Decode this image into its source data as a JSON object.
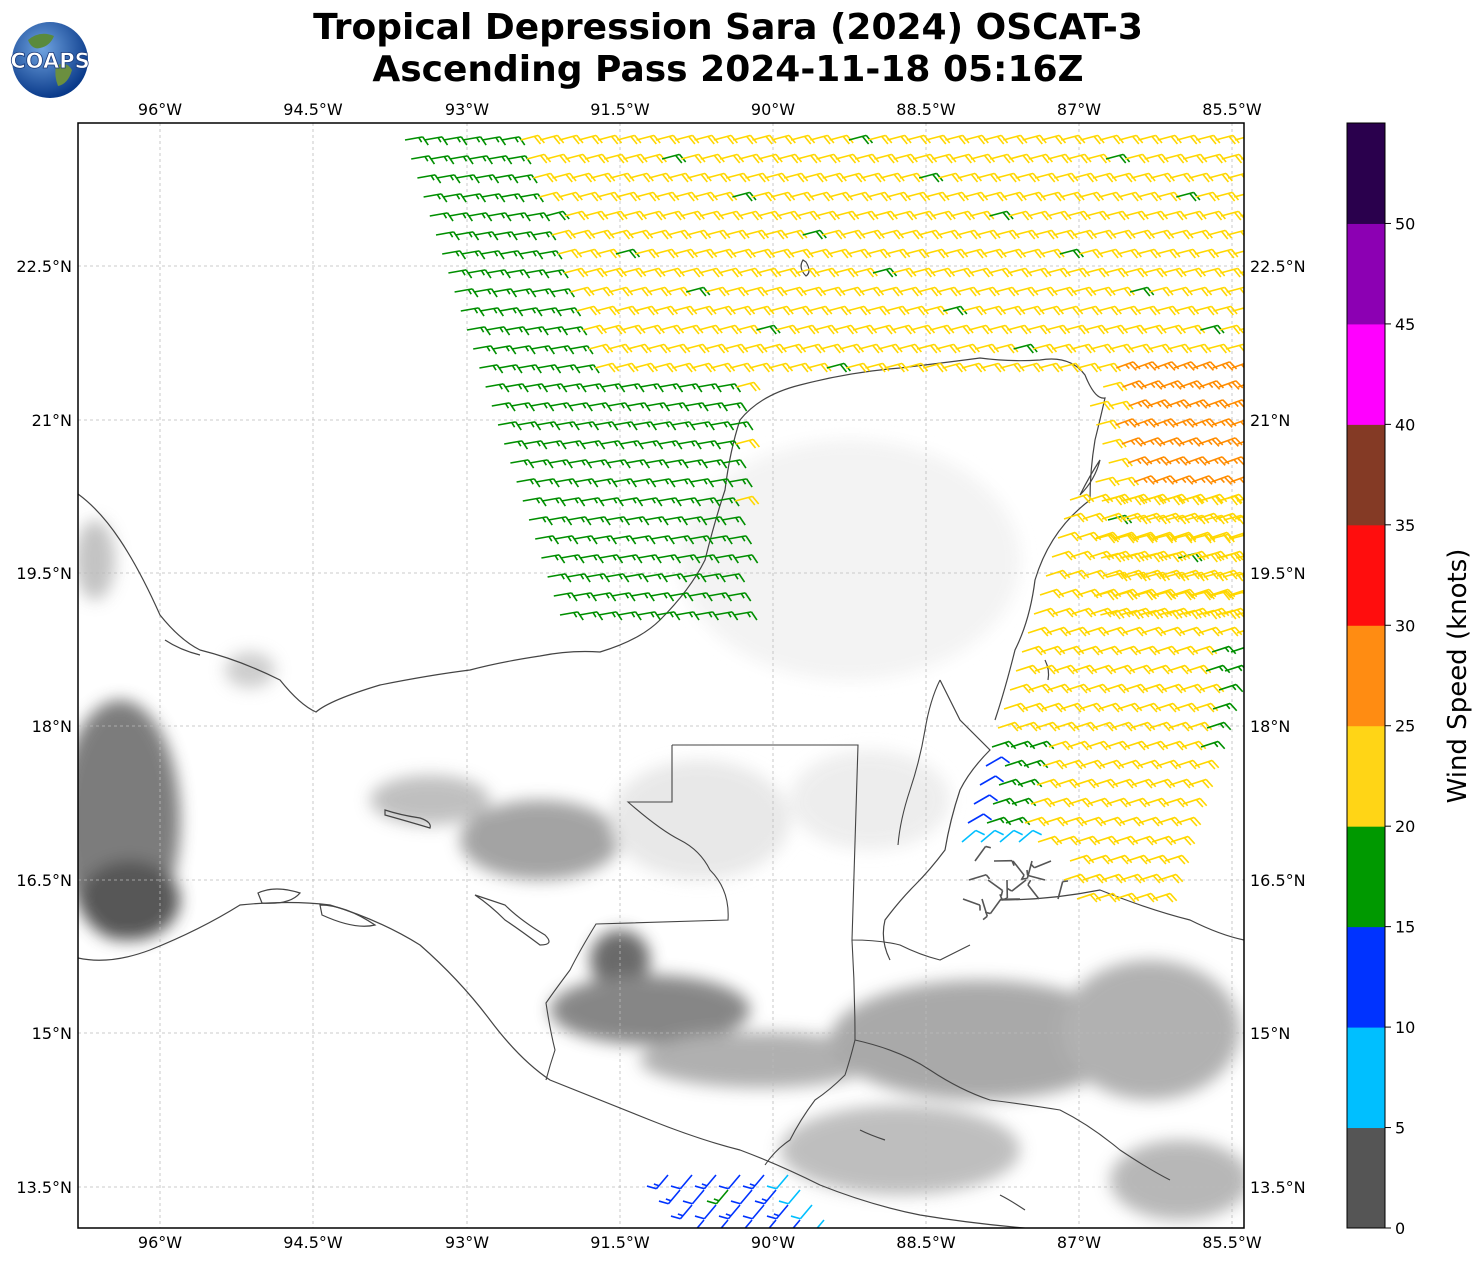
{
  "header": {
    "title_line1": "Tropical Depression Sara (2024) OSCAT-3",
    "title_line2": "Ascending Pass 2024-11-18 05:16Z",
    "logo_text": "COAPS"
  },
  "map": {
    "lon_ticks": [
      "96°W",
      "94.5°W",
      "93°W",
      "91.5°W",
      "90°W",
      "88.5°W",
      "87°W",
      "85.5°W"
    ],
    "lat_ticks": [
      "22.5°N",
      "21°N",
      "19.5°N",
      "18°N",
      "16.5°N",
      "15°N",
      "13.5°N"
    ],
    "grid": true,
    "basemap": "grayscale topography with coastlines and country borders",
    "wind_barbs_colors": {
      "0-5": "#555555",
      "5-10": "#00bfff",
      "10-15": "#0033ff",
      "15-20": "#008f00",
      "20-25": "#ffd700",
      "25-30": "#ff8c00"
    }
  },
  "colorbar": {
    "title": "Wind Speed (knots)",
    "ticks": [
      "0",
      "5",
      "10",
      "15",
      "20",
      "25",
      "30",
      "35",
      "40",
      "45",
      "50"
    ],
    "colors": [
      "#555555",
      "#00bfff",
      "#0033ff",
      "#009900",
      "#ffd516",
      "#ff8c12",
      "#ff0d0d",
      "#843a25",
      "#ff00ff",
      "#8c00b3",
      "#2a004d"
    ]
  }
}
